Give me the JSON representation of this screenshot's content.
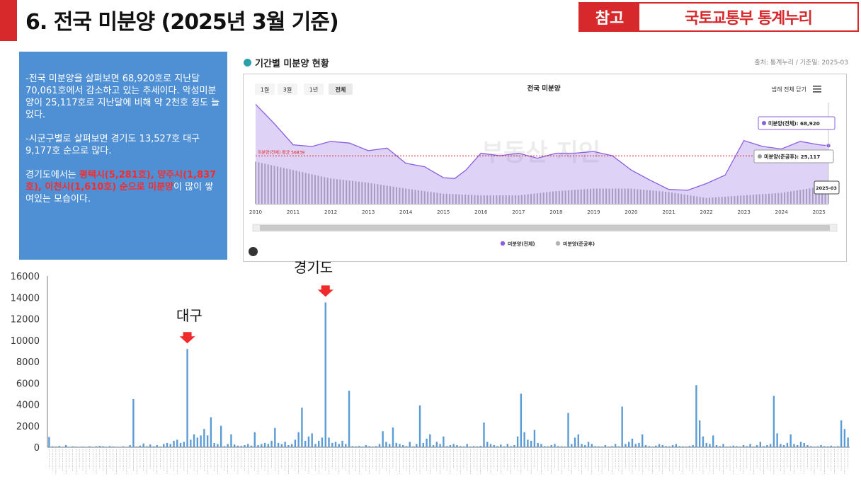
{
  "header": {
    "title": "6. 전국 미분양 (2025년 3월 기준)",
    "ref_label": "참고",
    "ref_source": "국토교통부 통계누리"
  },
  "summary": {
    "p1": "-전국 미분양을 살펴보면 68,920호로 지난달 70,061호에서 감소하고 있는 추세이다. 악성미분양이 25,117호로 지난달에 비해 약 2천호 정도 늘었다.",
    "p2": "-시군구별로 살펴보면 경기도 13,527호 대구 9,177호 순으로 많다.",
    "p3_pre": "경기도에서는 ",
    "p3_hl": "평택시(5,281호), 양주시(1,837호), 이천시(1,610호) 순으로 미분양",
    "p3_post": "이 많이 쌓여있는 모습이다."
  },
  "panel": {
    "title": "기간별 미분양 현황",
    "meta": "출처: 통계누리 / 기준일: 2025-03",
    "chart_title": "전국 미분양",
    "ranges": [
      "1월",
      "3월",
      "1년",
      "전체"
    ],
    "legend_toggle": "범례 전체 닫기",
    "avg_label": "미분양(전체) 평균 56839",
    "tooltip_total": "미분양(전체): 68,920",
    "tooltip_completed": "미분양(준공후): 25,117",
    "tooltip_date": "2025-03",
    "watermark": "부동산 지인",
    "legend": [
      "미분양(전체)",
      "미분양(준공후)"
    ],
    "colors": {
      "total": "#8a5ee0",
      "completed": "#b3b3b3",
      "avg": "#e02020"
    }
  },
  "chart_data": [
    {
      "type": "area",
      "title": "전국 미분양",
      "x_ticks": [
        "2010",
        "2011",
        "2012",
        "2013",
        "2014",
        "2015",
        "2016",
        "2017",
        "2018",
        "2019",
        "2020",
        "2021",
        "2022",
        "2023",
        "2024",
        "2025"
      ],
      "series": [
        {
          "name": "미분양(전체)",
          "x": [
            2010.0,
            2010.5,
            2011.0,
            2011.5,
            2012.0,
            2012.5,
            2013.0,
            2013.5,
            2014.0,
            2014.5,
            2015.0,
            2015.3,
            2015.6,
            2016.0,
            2016.5,
            2017.0,
            2017.5,
            2018.0,
            2018.5,
            2019.0,
            2019.5,
            2020.0,
            2020.5,
            2021.0,
            2021.5,
            2022.0,
            2022.5,
            2023.0,
            2023.5,
            2024.0,
            2024.5,
            2025.0,
            2025.25
          ],
          "values": [
            118000,
            95000,
            70000,
            68000,
            74000,
            72000,
            63000,
            66000,
            48000,
            44000,
            31000,
            30000,
            40000,
            60000,
            57000,
            60000,
            54000,
            60000,
            60000,
            62000,
            57000,
            40000,
            28000,
            17000,
            16000,
            24000,
            34000,
            75000,
            68000,
            65000,
            74000,
            70000,
            68920
          ]
        },
        {
          "name": "미분양(준공후)",
          "x": [
            2010.0,
            2011.0,
            2012.0,
            2013.0,
            2014.0,
            2015.0,
            2016.0,
            2017.0,
            2018.0,
            2019.0,
            2020.0,
            2021.0,
            2022.0,
            2023.0,
            2024.0,
            2025.0,
            2025.25
          ],
          "values": [
            50000,
            40000,
            30000,
            25000,
            18000,
            12000,
            10000,
            10000,
            15000,
            18000,
            18000,
            14000,
            7000,
            10000,
            13000,
            20000,
            25117
          ]
        }
      ],
      "avg": 56839
    },
    {
      "type": "bar",
      "title": "",
      "ylim": [
        0,
        16000
      ],
      "yticks": [
        0,
        2000,
        4000,
        6000,
        8000,
        10000,
        12000,
        14000,
        16000
      ],
      "annotations": [
        {
          "label": "대구",
          "value": 9177
        },
        {
          "label": "경기도",
          "value": 13527
        }
      ],
      "values": [
        950,
        80,
        60,
        120,
        40,
        200,
        30,
        80,
        50,
        20,
        60,
        40,
        90,
        30,
        80,
        120,
        90,
        40,
        100,
        60,
        40,
        30,
        80,
        20,
        200,
        4500,
        60,
        150,
        350,
        90,
        250,
        80,
        200,
        60,
        300,
        400,
        300,
        600,
        700,
        400,
        500,
        9177,
        700,
        1200,
        900,
        1100,
        1700,
        1100,
        2800,
        400,
        300,
        2000,
        100,
        300,
        1200,
        250,
        150,
        120,
        200,
        300,
        150,
        1400,
        200,
        300,
        400,
        300,
        600,
        1800,
        400,
        300,
        500,
        200,
        300,
        700,
        1400,
        3700,
        600,
        1000,
        1300,
        300,
        600,
        900,
        13527,
        900,
        400,
        500,
        300,
        600,
        300,
        5281,
        100,
        80,
        120,
        60,
        200,
        100,
        60,
        100,
        300,
        1500,
        500,
        300,
        1837,
        400,
        300,
        200,
        100,
        500,
        80,
        300,
        3900,
        400,
        800,
        1200,
        200,
        500,
        300,
        1000,
        100,
        200,
        300,
        200,
        100,
        80,
        300,
        60,
        100,
        80,
        120,
        2300,
        500,
        300,
        200,
        100,
        250,
        80,
        300,
        100,
        200,
        1000,
        5000,
        1400,
        700,
        600,
        1610,
        400,
        300,
        100,
        80,
        200,
        300,
        100,
        80,
        60,
        3200,
        300,
        900,
        1200,
        300,
        200,
        500,
        300,
        100,
        80,
        60,
        200,
        60,
        100,
        300,
        80,
        3800,
        300,
        500,
        800,
        300,
        400,
        1200,
        200,
        100,
        60,
        150,
        300,
        200,
        100,
        80,
        200,
        300,
        100,
        80,
        60,
        120,
        200,
        5800,
        2500,
        1000,
        400,
        300,
        1100,
        200,
        100,
        300,
        60,
        80,
        150,
        100,
        60,
        200,
        100,
        300,
        60,
        200,
        500,
        100,
        200,
        300,
        4800,
        1300,
        300,
        200,
        400,
        1200,
        300,
        200,
        500,
        400,
        200,
        100,
        60,
        80,
        200,
        100,
        80,
        150,
        60,
        100,
        2500,
        1700,
        900
      ]
    }
  ],
  "bar_titles": {
    "daegu": "대구",
    "gyeonggi": "경기도"
  }
}
